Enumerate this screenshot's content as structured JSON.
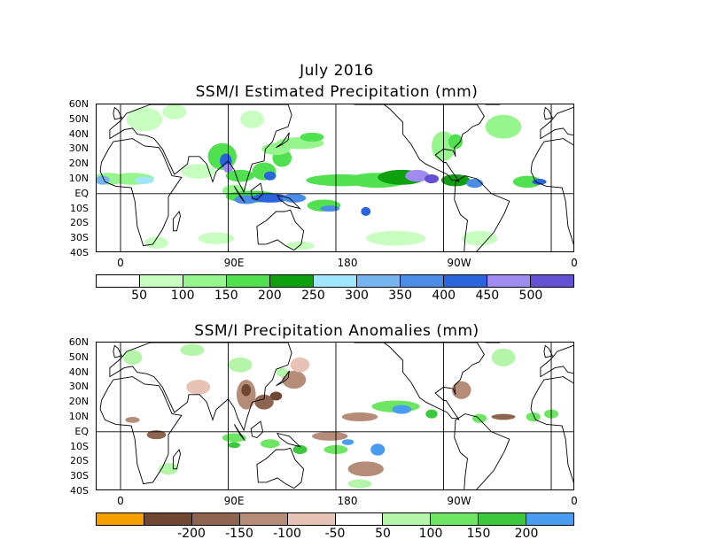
{
  "header": {
    "month": "July 2016"
  },
  "panel1": {
    "title": "SSM/I Estimated Precipitation (mm)",
    "lat_labels": [
      "60N",
      "50N",
      "40N",
      "30N",
      "20N",
      "10N",
      "EQ",
      "10S",
      "20S",
      "30S",
      "40S"
    ],
    "lon_labels": [
      "0",
      "90E",
      "180",
      "90W",
      "0"
    ],
    "colorbar": {
      "colors": [
        "#ffffff",
        "#c8ffc0",
        "#96f58c",
        "#50e050",
        "#0fa00f",
        "#a0e6ff",
        "#78b4f0",
        "#4a8ce6",
        "#2a64dc",
        "#a08cf0",
        "#6450d2"
      ],
      "labels": [
        "50",
        "100",
        "150",
        "200",
        "250",
        "300",
        "350",
        "400",
        "450",
        "500"
      ]
    }
  },
  "panel2": {
    "title": "SSM/I Precipitation Anomalies (mm)",
    "lat_labels": [
      "60N",
      "50N",
      "40N",
      "30N",
      "20N",
      "10N",
      "EQ",
      "10S",
      "20S",
      "30S",
      "40S"
    ],
    "lon_labels": [
      "0",
      "90E",
      "180",
      "90W",
      "0"
    ],
    "colorbar": {
      "colors": [
        "#f5a000",
        "#6e4632",
        "#8c6450",
        "#b48c78",
        "#e6c3b4",
        "#ffffff",
        "#b4f5aa",
        "#6ee664",
        "#3cc83c",
        "#4a9cf0"
      ],
      "labels": [
        "-200",
        "-150",
        "-100",
        "-50",
        "50",
        "100",
        "150",
        "200"
      ]
    }
  }
}
